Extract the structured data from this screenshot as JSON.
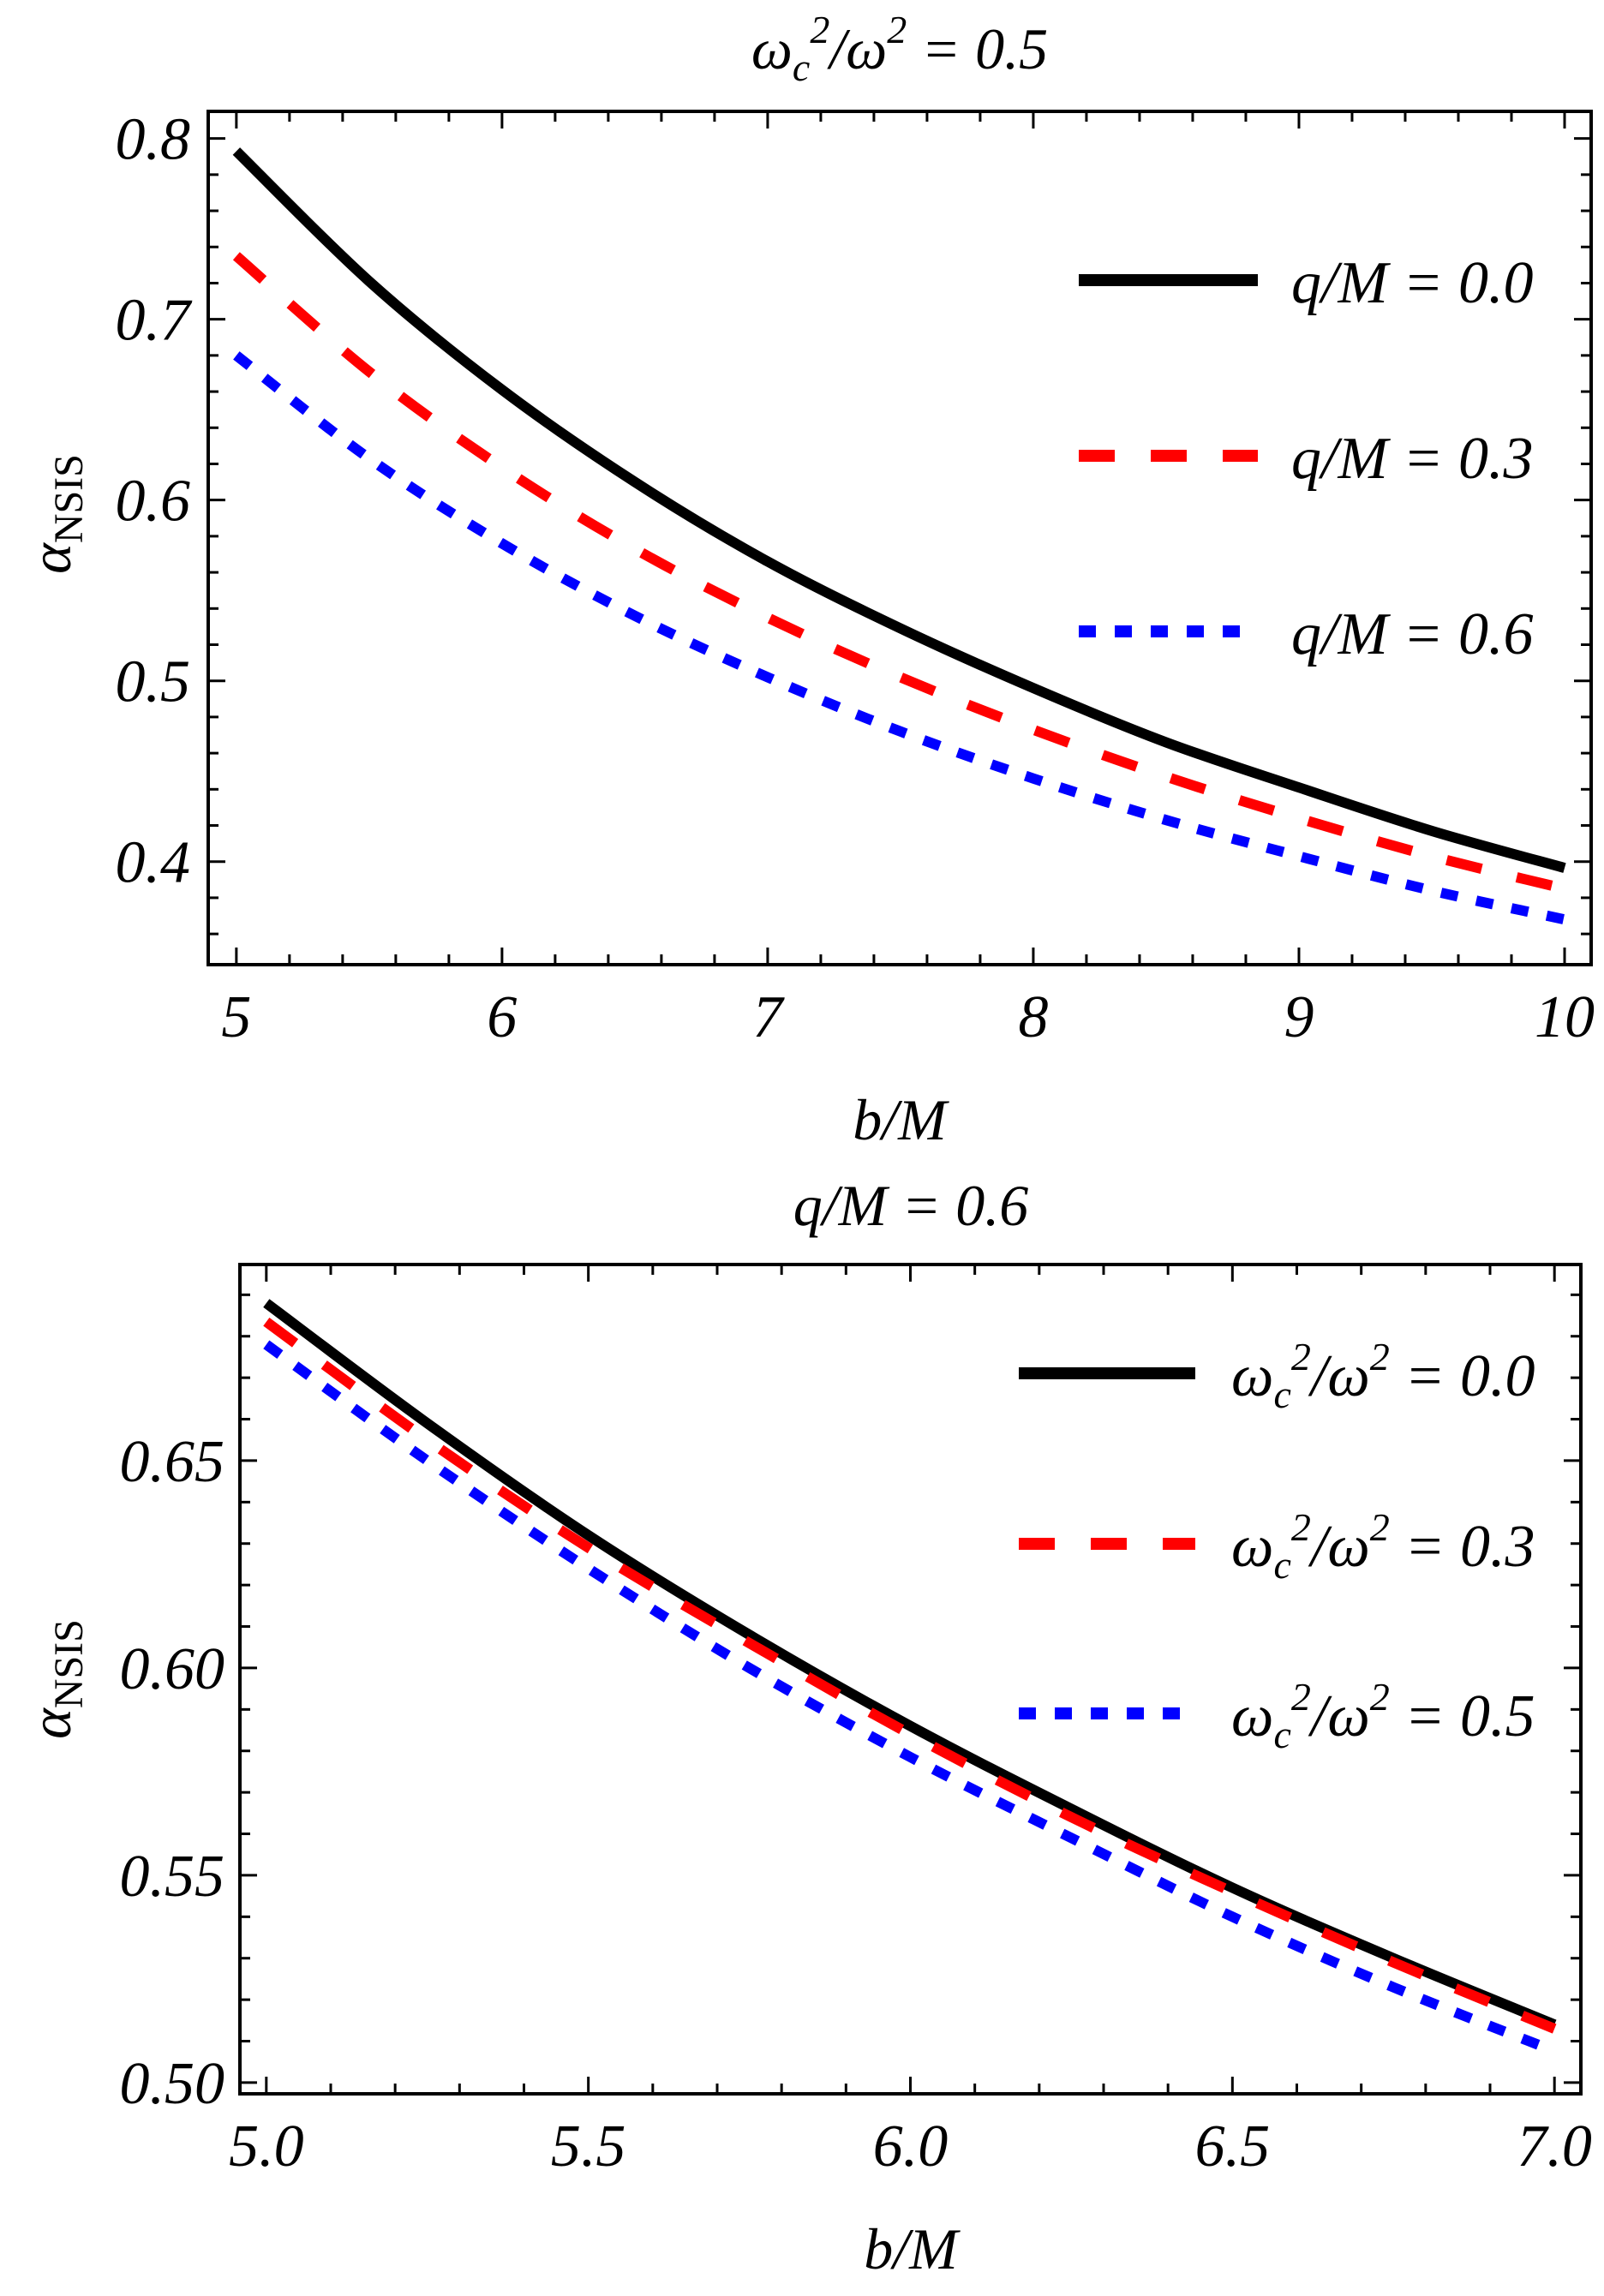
{
  "chart_data": [
    {
      "type": "line",
      "title": "ωc²/ω² = 0.5",
      "title_parts": {
        "omega_c": "ω",
        "sub_c": "c",
        "sup": "2",
        "slash": "/",
        "omega": "ω",
        "sup2": "2",
        "rest": " = 0.5"
      },
      "xlabel": "b/M",
      "ylabel": "α",
      "ylabel_sub": "NSIS",
      "xlim": [
        4.894,
        10.1
      ],
      "ylim": [
        0.343,
        0.815
      ],
      "xticks": [
        5,
        6,
        7,
        8,
        9,
        10
      ],
      "xtick_labels": [
        "5",
        "6",
        "7",
        "8",
        "9",
        "10"
      ],
      "x_minor_step": 0.2,
      "yticks": [
        0.4,
        0.5,
        0.6,
        0.7,
        0.8
      ],
      "ytick_labels": [
        "0.4",
        "0.5",
        "0.6",
        "0.7",
        "0.8"
      ],
      "y_minor_step": 0.02,
      "grid": false,
      "legend_position": "top-right",
      "x": [
        5,
        5.5,
        6,
        6.5,
        7,
        7.5,
        8,
        8.5,
        9,
        9.5,
        10
      ],
      "series": [
        {
          "name": "q/M = 0.0",
          "color": "#000000",
          "style": "solid",
          "values": [
            0.793,
            0.721,
            0.661,
            0.61,
            0.566,
            0.529,
            0.496,
            0.466,
            0.441,
            0.417,
            0.3965
          ]
        },
        {
          "name": "q/M = 0.3",
          "color": "#ff0000",
          "style": "dashed",
          "values": [
            0.735,
            0.671,
            0.618,
            0.573,
            0.535,
            0.502,
            0.473,
            0.447,
            0.424,
            0.403,
            0.385
          ]
        },
        {
          "name": "q/M = 0.6",
          "color": "#0000ff",
          "style": "dotted",
          "values": [
            0.68,
            0.623,
            0.576,
            0.536,
            0.502,
            0.472,
            0.446,
            0.423,
            0.403,
            0.384,
            0.368
          ]
        }
      ]
    },
    {
      "type": "line",
      "title": "q/M = 0.6",
      "xlabel": "b/M",
      "ylabel": "α",
      "ylabel_sub": "NSIS",
      "xlim": [
        4.959,
        7.041
      ],
      "ylim": [
        0.4973,
        0.6973
      ],
      "xticks": [
        5.0,
        5.5,
        6.0,
        6.5,
        7.0
      ],
      "xtick_labels": [
        "5.0",
        "5.5",
        "6.0",
        "6.5",
        "7.0"
      ],
      "x_minor_step": 0.1,
      "yticks": [
        0.5,
        0.55,
        0.6,
        0.65
      ],
      "ytick_labels": [
        "0.50",
        "0.55",
        "0.60",
        "0.65"
      ],
      "y_minor_step": 0.01,
      "grid": false,
      "legend_position": "top-right",
      "x": [
        5.0,
        5.25,
        5.5,
        5.75,
        6.0,
        6.25,
        6.5,
        6.75,
        7.0
      ],
      "series": [
        {
          "name": "ωc²/ω² = 0.0",
          "value_label": " = 0.0",
          "color": "#000000",
          "style": "solid",
          "values": [
            0.688,
            0.659,
            0.632,
            0.608,
            0.586,
            0.566,
            0.547,
            0.53,
            0.514
          ]
        },
        {
          "name": "ωc²/ω² = 0.3",
          "value_label": " = 0.3",
          "color": "#ff0000",
          "style": "dashed",
          "values": [
            0.6835,
            0.655,
            0.629,
            0.606,
            0.584,
            0.564,
            0.546,
            0.529,
            0.513
          ]
        },
        {
          "name": "ωc²/ω² = 0.5",
          "value_label": " = 0.5",
          "color": "#0000ff",
          "style": "dotted",
          "values": [
            0.678,
            0.65,
            0.624,
            0.6,
            0.5785,
            0.559,
            0.54,
            0.523,
            0.5076
          ]
        }
      ]
    }
  ]
}
